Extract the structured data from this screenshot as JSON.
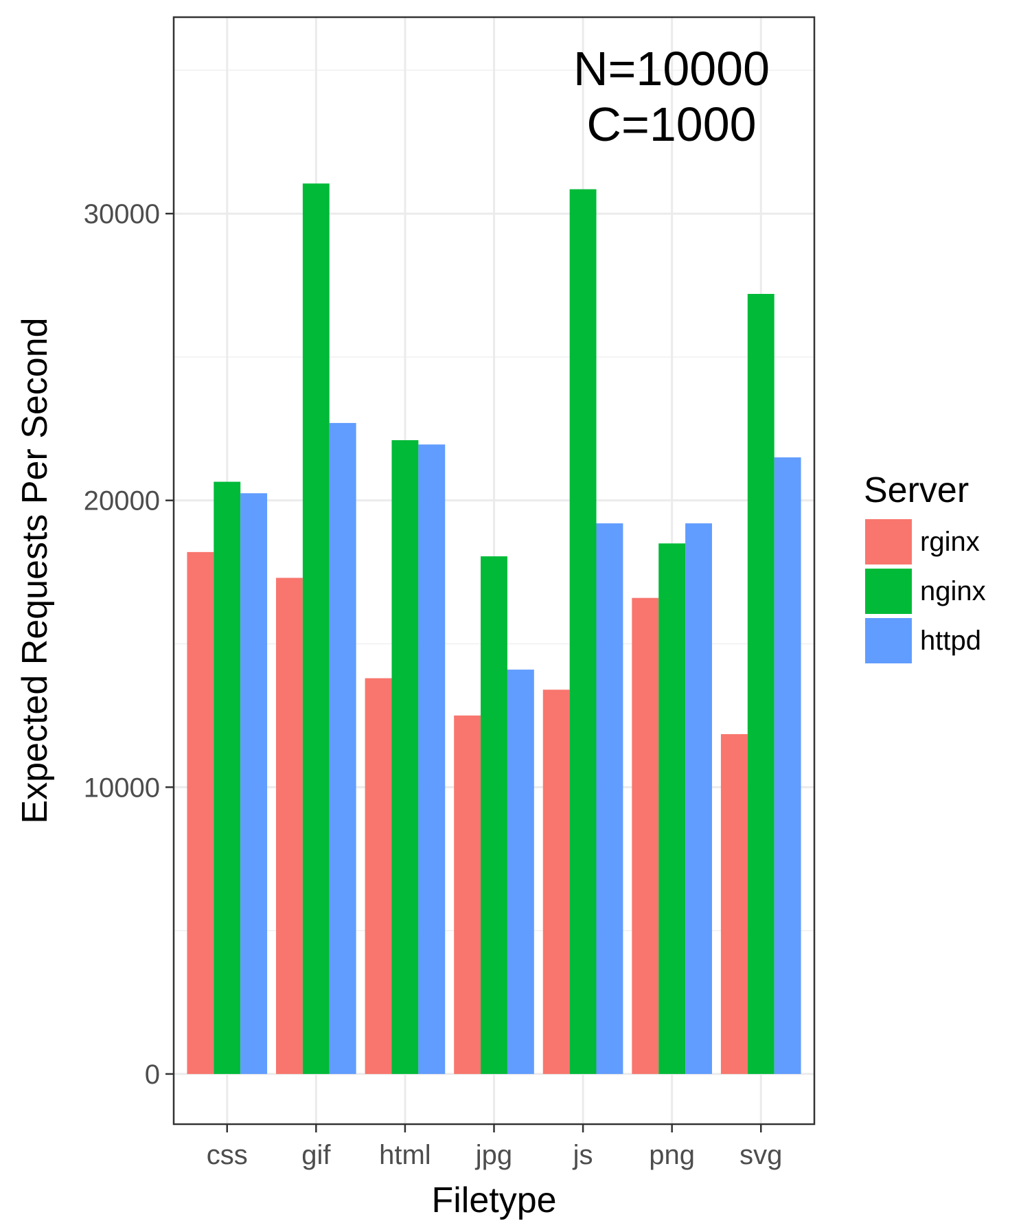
{
  "chart_data": {
    "type": "bar",
    "categories": [
      "css",
      "gif",
      "html",
      "jpg",
      "js",
      "png",
      "svg"
    ],
    "series": [
      {
        "name": "rginx",
        "color": "#F8766D",
        "values": [
          18200,
          17300,
          13800,
          12500,
          13400,
          16600,
          11850
        ]
      },
      {
        "name": "nginx",
        "color": "#00BA38",
        "values": [
          20650,
          31050,
          22100,
          18050,
          30850,
          18500,
          27200
        ]
      },
      {
        "name": "httpd",
        "color": "#619CFF",
        "values": [
          20250,
          22700,
          21950,
          14100,
          19200,
          19200,
          21500
        ]
      }
    ],
    "title": "",
    "xlabel": "Filetype",
    "ylabel": "Expected Requests Per Second",
    "ylim": [
      -1750,
      36850
    ],
    "yticks": [
      0,
      10000,
      20000,
      30000
    ],
    "ytick_labels": [
      "0",
      "10000",
      "20000",
      "30000"
    ],
    "grid": true,
    "legend": {
      "title": "Server",
      "position": "right"
    },
    "annotation": {
      "lines": [
        "N=10000",
        "C=1000"
      ]
    }
  }
}
